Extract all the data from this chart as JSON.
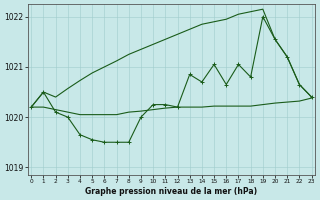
{
  "xlabel": "Graphe pression niveau de la mer (hPa)",
  "ylim": [
    1018.85,
    1022.25
  ],
  "xlim": [
    -0.3,
    23.3
  ],
  "yticks": [
    1019,
    1020,
    1021,
    1022
  ],
  "xticks": [
    0,
    1,
    2,
    3,
    4,
    5,
    6,
    7,
    8,
    9,
    10,
    11,
    12,
    13,
    14,
    15,
    16,
    17,
    18,
    19,
    20,
    21,
    22,
    23
  ],
  "background_color": "#c8e8e8",
  "grid_color": "#a0cccc",
  "line_color": "#1a5c1a",
  "series_main": [
    1020.2,
    1020.5,
    1020.1,
    1020.0,
    1019.65,
    1019.55,
    1019.5,
    1019.5,
    1019.5,
    1020.0,
    1020.25,
    1020.25,
    1020.2,
    1020.85,
    1020.7,
    1021.05,
    1020.65,
    1021.05,
    1020.8,
    1022.0,
    1021.55,
    1021.2,
    1020.65,
    1020.4
  ],
  "series_upper": [
    1020.2,
    1020.5,
    1020.4,
    1020.57,
    1020.73,
    1020.88,
    1021.0,
    1021.12,
    1021.25,
    1021.35,
    1021.45,
    1021.55,
    1021.65,
    1021.75,
    1021.85,
    1021.9,
    1021.95,
    1022.05,
    1022.1,
    1022.15,
    1021.55,
    1021.2,
    1020.65,
    1020.4
  ],
  "series_lower": [
    1020.2,
    1020.2,
    1020.15,
    1020.1,
    1020.05,
    1020.05,
    1020.05,
    1020.05,
    1020.1,
    1020.12,
    1020.15,
    1020.18,
    1020.2,
    1020.2,
    1020.2,
    1020.22,
    1020.22,
    1020.22,
    1020.22,
    1020.25,
    1020.28,
    1020.3,
    1020.32,
    1020.38
  ]
}
